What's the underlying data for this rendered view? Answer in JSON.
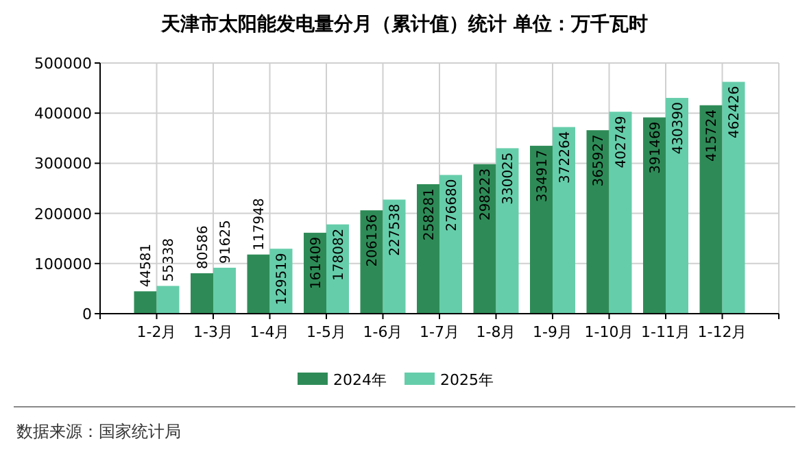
{
  "chart_data": {
    "type": "bar",
    "title": "天津市太阳能发电量分月（累计值）统计  单位：万千瓦时",
    "categories": [
      "1-2月",
      "1-3月",
      "1-4月",
      "1-5月",
      "1-6月",
      "1-7月",
      "1-8月",
      "1-9月",
      "1-10月",
      "1-11月",
      "1-12月"
    ],
    "series": [
      {
        "name": "2024年",
        "color": "#2e8b57",
        "values": [
          44581,
          80586,
          117948,
          161409,
          206136,
          258281,
          298223,
          334917,
          365927,
          391469,
          415724
        ]
      },
      {
        "name": "2025年",
        "color": "#66cdaa",
        "values": [
          55338,
          91625,
          129519,
          178082,
          227538,
          276680,
          330025,
          372264,
          402749,
          430390,
          462426
        ]
      }
    ],
    "ylim": [
      0,
      500000
    ],
    "yticks": [
      0,
      100000,
      200000,
      300000,
      400000,
      500000
    ],
    "grid": true,
    "legend": "bottom",
    "data_labels": true,
    "annotations": [
      "数据来源：国家统计局"
    ]
  }
}
